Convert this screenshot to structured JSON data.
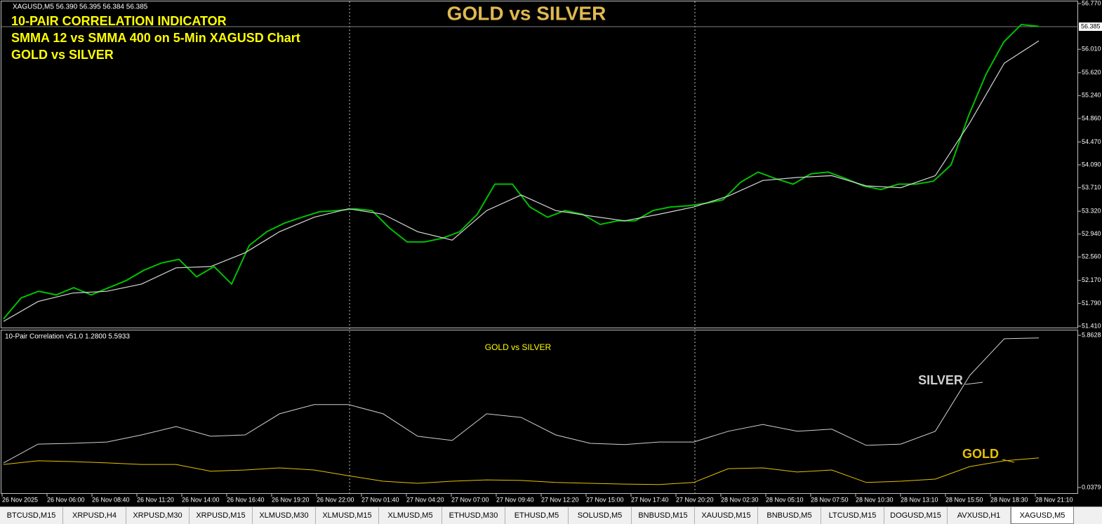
{
  "header": {
    "symbol_info": "XAGUSD,M5  56.390 56.395 56.384 56.385"
  },
  "overlay_text": [
    "10-PAIR CORRELATION INDICATOR",
    "SMMA 12 vs SMMA 400 on 5-Min XAGUSD Chart",
    "GOLD vs SILVER"
  ],
  "title": "GOLD vs SILVER",
  "price_chart": {
    "ylim": [
      51.41,
      56.77
    ],
    "yticks": [
      {
        "value": 56.77,
        "label": "56.770"
      },
      {
        "value": 56.01,
        "label": "56.010"
      },
      {
        "value": 55.62,
        "label": "55.620"
      },
      {
        "value": 55.24,
        "label": "55.240"
      },
      {
        "value": 54.86,
        "label": "54.860"
      },
      {
        "value": 54.47,
        "label": "54.470"
      },
      {
        "value": 54.09,
        "label": "54.090"
      },
      {
        "value": 53.71,
        "label": "53.710"
      },
      {
        "value": 53.32,
        "label": "53.320"
      },
      {
        "value": 52.94,
        "label": "52.940"
      },
      {
        "value": 52.56,
        "label": "52.560"
      },
      {
        "value": 52.17,
        "label": "52.170"
      },
      {
        "value": 51.79,
        "label": "51.790"
      },
      {
        "value": 51.41,
        "label": "51.410"
      }
    ],
    "current_price": {
      "value": 56.385,
      "label": "56.385"
    },
    "price_color": "#00c000",
    "close": [
      51.53,
      51.88,
      51.99,
      51.93,
      52.05,
      51.93,
      52.05,
      52.17,
      52.34,
      52.46,
      52.52,
      52.23,
      52.4,
      52.11,
      52.75,
      52.98,
      53.12,
      53.22,
      53.31,
      53.33,
      53.36,
      53.33,
      53.04,
      52.81,
      52.81,
      52.87,
      52.98,
      53.27,
      53.77,
      53.77,
      53.39,
      53.22,
      53.33,
      53.27,
      53.1,
      53.16,
      53.16,
      53.33,
      53.39,
      53.41,
      53.45,
      53.51,
      53.8,
      53.97,
      53.86,
      53.77,
      53.94,
      53.97,
      53.86,
      53.74,
      53.68,
      53.77,
      53.77,
      53.82,
      54.09,
      54.91,
      55.6,
      56.13,
      56.42,
      56.39
    ],
    "smma_color": "#d8d8d8",
    "smma": [
      51.49,
      51.82,
      51.96,
      51.99,
      52.11,
      52.38,
      52.4,
      52.63,
      52.98,
      53.22,
      53.36,
      53.27,
      52.98,
      52.84,
      53.33,
      53.59,
      53.33,
      53.24,
      53.16,
      53.27,
      53.39,
      53.57,
      53.83,
      53.88,
      53.91,
      53.74,
      53.71,
      53.91,
      54.79,
      55.78,
      56.15
    ]
  },
  "indicator": {
    "label": "10-Pair Correlation v51.0 1.2800 5.5933",
    "subtitle": "GOLD vs SILVER",
    "ylim": [
      0.0379,
      5.8628
    ],
    "yticks": [
      5.8628,
      0.0379
    ],
    "series": [
      {
        "name": "SILVER",
        "color": "#d0d0d0",
        "values": [
          0.98,
          1.7,
          1.73,
          1.78,
          2.05,
          2.37,
          2.0,
          2.05,
          2.86,
          3.21,
          3.21,
          2.86,
          2.0,
          1.84,
          2.86,
          2.72,
          2.05,
          1.73,
          1.68,
          1.78,
          1.78,
          2.19,
          2.45,
          2.19,
          2.27,
          1.65,
          1.7,
          2.19,
          4.33,
          5.73,
          5.76
        ]
      },
      {
        "name": "GOLD",
        "color": "#e6c200",
        "values": [
          0.92,
          1.06,
          1.03,
          0.98,
          0.92,
          0.92,
          0.66,
          0.71,
          0.79,
          0.71,
          0.49,
          0.28,
          0.2,
          0.28,
          0.33,
          0.31,
          0.23,
          0.2,
          0.17,
          0.15,
          0.23,
          0.76,
          0.79,
          0.63,
          0.71,
          0.23,
          0.28,
          0.36,
          0.84,
          1.06,
          1.17
        ]
      }
    ]
  },
  "time_axis": [
    "26 Nov 2025",
    "26 Nov 06:00",
    "26 Nov 08:40",
    "26 Nov 11:20",
    "26 Nov 14:00",
    "26 Nov 16:40",
    "26 Nov 19:20",
    "26 Nov 22:00",
    "27 Nov 01:40",
    "27 Nov 04:20",
    "27 Nov 07:00",
    "27 Nov 09:40",
    "27 Nov 12:20",
    "27 Nov 15:00",
    "27 Nov 17:40",
    "27 Nov 20:20",
    "28 Nov 02:30",
    "28 Nov 05:10",
    "28 Nov 07:50",
    "28 Nov 10:30",
    "28 Nov 13:10",
    "28 Nov 15:50",
    "28 Nov 18:30",
    "28 Nov 21:10"
  ],
  "tabs": [
    "BTCUSD,M15",
    "XRPUSD,H4",
    "XRPUSD,M30",
    "XRPUSD,M15",
    "XLMUSD,M30",
    "XLMUSD,M15",
    "XLMUSD,M5",
    "ETHUSD,M30",
    "ETHUSD,M5",
    "SOLUSD,M5",
    "BNBUSD,M15",
    "XAUUSD,M15",
    "BNBUSD,M5",
    "LTCUSD,M15",
    "DOGUSD,M15",
    "AVXUSD,H1",
    "XAGUSD,M5"
  ],
  "active_tab": 16
}
